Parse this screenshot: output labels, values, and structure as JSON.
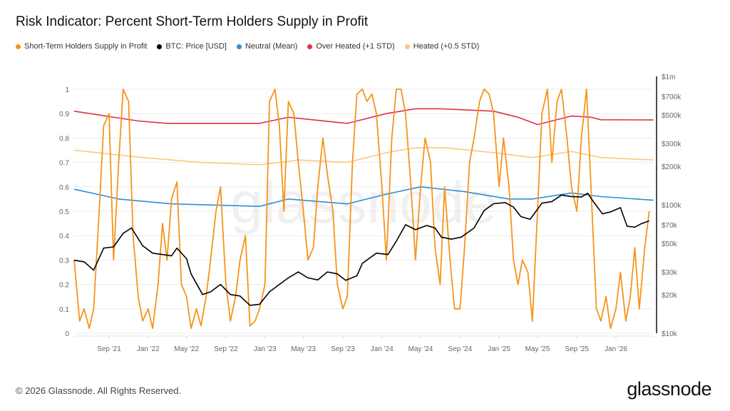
{
  "title": "Risk Indicator: Percent Short-Term Holders Supply in Profit",
  "footer": "© 2026 Glassnode. All Rights Reserved.",
  "logo": "glassnode",
  "watermark": "glassnode",
  "chart_data": {
    "type": "line",
    "title": "Risk Indicator: Percent Short-Term Holders Supply in Profit",
    "legend_placement": "top-left",
    "grid": true,
    "x_ticks": [
      "Sep '21",
      "Jan '22",
      "May '22",
      "Sep '22",
      "Jan '23",
      "May '23",
      "Sep '23",
      "Jan '24",
      "May '24",
      "Sep '24",
      "Jan '25",
      "May '25",
      "Sep '25",
      "Jan '26"
    ],
    "x_tick_dates": [
      "2021-09-01",
      "2022-01-01",
      "2022-05-01",
      "2022-09-01",
      "2023-01-01",
      "2023-05-01",
      "2023-09-01",
      "2024-01-01",
      "2024-05-01",
      "2024-09-01",
      "2025-01-01",
      "2025-05-01",
      "2025-09-01",
      "2026-01-01"
    ],
    "left_axis": {
      "scale": "linear",
      "ylim": [
        0,
        1
      ],
      "ticks": [
        "0",
        "0.1",
        "0.2",
        "0.3",
        "0.4",
        "0.5",
        "0.6",
        "0.7",
        "0.8",
        "0.9",
        "1"
      ]
    },
    "right_axis": {
      "scale": "log",
      "ylim": [
        10000,
        1000000
      ],
      "tick_values": [
        10000,
        20000,
        30000,
        50000,
        70000,
        100000,
        200000,
        300000,
        500000,
        700000,
        1000000
      ],
      "ticks": [
        "$10k",
        "$20k",
        "$30k",
        "$50k",
        "$70k",
        "$100k",
        "$200k",
        "$300k",
        "$500k",
        "$700k",
        "$1m"
      ]
    },
    "series": [
      {
        "name": "Short-Term Holders Supply in Profit",
        "axis": "left",
        "color": "#f7931a",
        "points": [
          [
            "2021-05-15",
            0.3
          ],
          [
            "2021-06-01",
            0.05
          ],
          [
            "2021-06-15",
            0.1
          ],
          [
            "2021-07-01",
            0.02
          ],
          [
            "2021-07-15",
            0.1
          ],
          [
            "2021-08-01",
            0.5
          ],
          [
            "2021-08-15",
            0.85
          ],
          [
            "2021-09-01",
            0.9
          ],
          [
            "2021-09-15",
            0.3
          ],
          [
            "2021-10-01",
            0.7
          ],
          [
            "2021-10-15",
            1.0
          ],
          [
            "2021-11-01",
            0.95
          ],
          [
            "2021-11-15",
            0.4
          ],
          [
            "2021-12-01",
            0.15
          ],
          [
            "2021-12-15",
            0.05
          ],
          [
            "2022-01-01",
            0.1
          ],
          [
            "2022-01-15",
            0.02
          ],
          [
            "2022-02-01",
            0.2
          ],
          [
            "2022-02-15",
            0.45
          ],
          [
            "2022-03-01",
            0.3
          ],
          [
            "2022-03-15",
            0.55
          ],
          [
            "2022-04-01",
            0.62
          ],
          [
            "2022-04-15",
            0.2
          ],
          [
            "2022-05-01",
            0.15
          ],
          [
            "2022-05-15",
            0.02
          ],
          [
            "2022-06-01",
            0.1
          ],
          [
            "2022-06-15",
            0.03
          ],
          [
            "2022-07-01",
            0.15
          ],
          [
            "2022-07-15",
            0.3
          ],
          [
            "2022-08-01",
            0.5
          ],
          [
            "2022-08-15",
            0.6
          ],
          [
            "2022-09-01",
            0.2
          ],
          [
            "2022-09-15",
            0.05
          ],
          [
            "2022-10-01",
            0.15
          ],
          [
            "2022-10-15",
            0.3
          ],
          [
            "2022-11-01",
            0.4
          ],
          [
            "2022-11-15",
            0.03
          ],
          [
            "2022-12-01",
            0.05
          ],
          [
            "2022-12-15",
            0.1
          ],
          [
            "2023-01-01",
            0.2
          ],
          [
            "2023-01-15",
            0.95
          ],
          [
            "2023-02-01",
            1.0
          ],
          [
            "2023-02-15",
            0.85
          ],
          [
            "2023-03-01",
            0.5
          ],
          [
            "2023-03-15",
            0.95
          ],
          [
            "2023-04-01",
            0.9
          ],
          [
            "2023-04-15",
            0.7
          ],
          [
            "2023-05-01",
            0.5
          ],
          [
            "2023-05-15",
            0.3
          ],
          [
            "2023-06-01",
            0.35
          ],
          [
            "2023-06-15",
            0.6
          ],
          [
            "2023-07-01",
            0.8
          ],
          [
            "2023-07-15",
            0.65
          ],
          [
            "2023-08-01",
            0.5
          ],
          [
            "2023-08-15",
            0.2
          ],
          [
            "2023-09-01",
            0.1
          ],
          [
            "2023-09-15",
            0.15
          ],
          [
            "2023-10-01",
            0.7
          ],
          [
            "2023-10-15",
            0.98
          ],
          [
            "2023-11-01",
            1.0
          ],
          [
            "2023-11-15",
            0.95
          ],
          [
            "2023-12-01",
            0.98
          ],
          [
            "2023-12-15",
            0.9
          ],
          [
            "2024-01-01",
            0.6
          ],
          [
            "2024-01-15",
            0.3
          ],
          [
            "2024-02-01",
            0.8
          ],
          [
            "2024-02-15",
            1.0
          ],
          [
            "2024-03-01",
            1.0
          ],
          [
            "2024-03-15",
            0.9
          ],
          [
            "2024-04-01",
            0.6
          ],
          [
            "2024-04-15",
            0.3
          ],
          [
            "2024-05-01",
            0.6
          ],
          [
            "2024-05-15",
            0.8
          ],
          [
            "2024-06-01",
            0.7
          ],
          [
            "2024-06-15",
            0.35
          ],
          [
            "2024-07-01",
            0.2
          ],
          [
            "2024-07-15",
            0.6
          ],
          [
            "2024-08-01",
            0.3
          ],
          [
            "2024-08-15",
            0.1
          ],
          [
            "2024-09-01",
            0.1
          ],
          [
            "2024-09-15",
            0.35
          ],
          [
            "2024-10-01",
            0.7
          ],
          [
            "2024-10-15",
            0.8
          ],
          [
            "2024-11-01",
            0.95
          ],
          [
            "2024-11-15",
            1.0
          ],
          [
            "2024-12-01",
            0.98
          ],
          [
            "2024-12-15",
            0.9
          ],
          [
            "2025-01-01",
            0.6
          ],
          [
            "2025-01-15",
            0.8
          ],
          [
            "2025-02-01",
            0.6
          ],
          [
            "2025-02-15",
            0.3
          ],
          [
            "2025-03-01",
            0.2
          ],
          [
            "2025-03-15",
            0.3
          ],
          [
            "2025-04-01",
            0.25
          ],
          [
            "2025-04-15",
            0.05
          ],
          [
            "2025-05-01",
            0.5
          ],
          [
            "2025-05-15",
            0.9
          ],
          [
            "2025-06-01",
            1.0
          ],
          [
            "2025-06-15",
            0.7
          ],
          [
            "2025-07-01",
            0.95
          ],
          [
            "2025-07-15",
            1.0
          ],
          [
            "2025-08-01",
            0.8
          ],
          [
            "2025-08-15",
            0.6
          ],
          [
            "2025-09-01",
            0.5
          ],
          [
            "2025-09-15",
            0.8
          ],
          [
            "2025-10-01",
            1.0
          ],
          [
            "2025-10-15",
            0.6
          ],
          [
            "2025-11-01",
            0.1
          ],
          [
            "2025-11-15",
            0.05
          ],
          [
            "2025-12-01",
            0.15
          ],
          [
            "2025-12-15",
            0.02
          ],
          [
            "2026-01-01",
            0.1
          ],
          [
            "2026-01-15",
            0.25
          ],
          [
            "2026-02-01",
            0.05
          ],
          [
            "2026-02-15",
            0.15
          ],
          [
            "2026-03-01",
            0.35
          ],
          [
            "2026-03-15",
            0.1
          ],
          [
            "2026-04-01",
            0.35
          ],
          [
            "2026-04-15",
            0.5
          ]
        ]
      },
      {
        "name": "BTC: Price [USD]",
        "axis": "right",
        "color": "#000000",
        "points": [
          [
            "2021-05-15",
            37000
          ],
          [
            "2021-06-15",
            36000
          ],
          [
            "2021-07-15",
            31000
          ],
          [
            "2021-08-15",
            46000
          ],
          [
            "2021-09-15",
            47000
          ],
          [
            "2021-10-15",
            60000
          ],
          [
            "2021-11-10",
            66000
          ],
          [
            "2021-12-15",
            48000
          ],
          [
            "2022-01-15",
            42000
          ],
          [
            "2022-02-15",
            41000
          ],
          [
            "2022-03-15",
            40000
          ],
          [
            "2022-04-01",
            46000
          ],
          [
            "2022-05-01",
            38000
          ],
          [
            "2022-05-15",
            29000
          ],
          [
            "2022-06-20",
            20000
          ],
          [
            "2022-07-15",
            21000
          ],
          [
            "2022-08-15",
            24000
          ],
          [
            "2022-09-15",
            20000
          ],
          [
            "2022-10-15",
            19500
          ],
          [
            "2022-11-15",
            16500
          ],
          [
            "2022-12-15",
            16800
          ],
          [
            "2023-01-15",
            21000
          ],
          [
            "2023-02-15",
            24000
          ],
          [
            "2023-03-15",
            27000
          ],
          [
            "2023-04-15",
            30000
          ],
          [
            "2023-05-15",
            27000
          ],
          [
            "2023-06-15",
            26000
          ],
          [
            "2023-07-15",
            30000
          ],
          [
            "2023-08-15",
            29000
          ],
          [
            "2023-09-10",
            25800
          ],
          [
            "2023-10-15",
            28000
          ],
          [
            "2023-11-01",
            35000
          ],
          [
            "2023-12-15",
            42000
          ],
          [
            "2024-01-20",
            41000
          ],
          [
            "2024-02-15",
            52000
          ],
          [
            "2024-03-15",
            70000
          ],
          [
            "2024-04-15",
            64000
          ],
          [
            "2024-05-20",
            69000
          ],
          [
            "2024-06-15",
            66000
          ],
          [
            "2024-07-05",
            56000
          ],
          [
            "2024-08-05",
            54000
          ],
          [
            "2024-09-05",
            56000
          ],
          [
            "2024-10-15",
            66000
          ],
          [
            "2024-11-15",
            90000
          ],
          [
            "2024-12-15",
            102000
          ],
          [
            "2025-01-20",
            104000
          ],
          [
            "2025-02-15",
            96000
          ],
          [
            "2025-03-10",
            81000
          ],
          [
            "2025-04-08",
            77000
          ],
          [
            "2025-05-15",
            103000
          ],
          [
            "2025-06-15",
            106000
          ],
          [
            "2025-07-15",
            119000
          ],
          [
            "2025-08-15",
            116000
          ],
          [
            "2025-09-15",
            115000
          ],
          [
            "2025-10-05",
            123000
          ],
          [
            "2025-10-20",
            108000
          ],
          [
            "2025-11-20",
            85000
          ],
          [
            "2025-12-15",
            88000
          ],
          [
            "2026-01-15",
            95000
          ],
          [
            "2026-02-05",
            68000
          ],
          [
            "2026-03-01",
            67000
          ],
          [
            "2026-03-20",
            71000
          ],
          [
            "2026-04-15",
            75000
          ]
        ]
      },
      {
        "name": "Neutral (Mean)",
        "axis": "left",
        "color": "#2f8fd0",
        "points": [
          [
            "2021-05-15",
            0.59
          ],
          [
            "2021-10-01",
            0.55
          ],
          [
            "2022-03-15",
            0.53
          ],
          [
            "2022-12-15",
            0.52
          ],
          [
            "2023-03-15",
            0.55
          ],
          [
            "2023-09-15",
            0.53
          ],
          [
            "2024-01-15",
            0.57
          ],
          [
            "2024-05-01",
            0.6
          ],
          [
            "2024-09-15",
            0.58
          ],
          [
            "2025-02-01",
            0.55
          ],
          [
            "2025-04-15",
            0.55
          ],
          [
            "2025-08-15",
            0.575
          ],
          [
            "2025-11-15",
            0.56
          ],
          [
            "2026-04-28",
            0.545
          ]
        ]
      },
      {
        "name": "Over Heated (+1 STD)",
        "axis": "left",
        "color": "#e03146",
        "points": [
          [
            "2021-05-15",
            0.91
          ],
          [
            "2021-12-01",
            0.87
          ],
          [
            "2022-03-01",
            0.86
          ],
          [
            "2022-12-15",
            0.86
          ],
          [
            "2023-03-15",
            0.885
          ],
          [
            "2023-09-15",
            0.86
          ],
          [
            "2024-01-15",
            0.9
          ],
          [
            "2024-04-15",
            0.92
          ],
          [
            "2024-07-01",
            0.92
          ],
          [
            "2024-12-15",
            0.91
          ],
          [
            "2025-03-01",
            0.885
          ],
          [
            "2025-05-01",
            0.855
          ],
          [
            "2025-08-15",
            0.89
          ],
          [
            "2025-10-15",
            0.885
          ],
          [
            "2025-11-15",
            0.875
          ],
          [
            "2026-04-28",
            0.874
          ]
        ]
      },
      {
        "name": "Heated (+0.5 STD)",
        "axis": "left",
        "color": "#fdc97a",
        "points": [
          [
            "2021-05-15",
            0.75
          ],
          [
            "2021-12-15",
            0.72
          ],
          [
            "2022-06-15",
            0.7
          ],
          [
            "2022-12-15",
            0.69
          ],
          [
            "2023-04-15",
            0.71
          ],
          [
            "2023-09-15",
            0.7
          ],
          [
            "2024-01-15",
            0.74
          ],
          [
            "2024-04-15",
            0.76
          ],
          [
            "2024-07-15",
            0.76
          ],
          [
            "2024-12-15",
            0.74
          ],
          [
            "2025-04-15",
            0.72
          ],
          [
            "2025-08-15",
            0.745
          ],
          [
            "2025-11-15",
            0.72
          ],
          [
            "2026-04-28",
            0.71
          ]
        ]
      }
    ]
  }
}
